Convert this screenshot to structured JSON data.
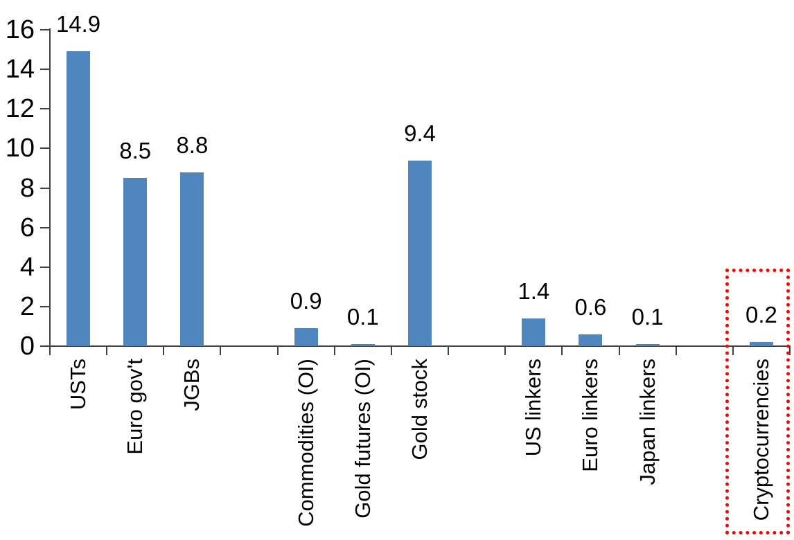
{
  "chart_data": {
    "type": "bar",
    "title": "",
    "xlabel": "",
    "ylabel": "",
    "categories": [
      "USTs",
      "Euro gov't",
      "JGBs",
      "Commodities (OI)",
      "Gold futures (OI)",
      "Gold stock",
      "US linkers",
      "Euro linkers",
      "Japan linkers",
      "Cryptocurrencies"
    ],
    "values": [
      14.9,
      8.5,
      8.8,
      0.9,
      0.1,
      9.4,
      1.4,
      0.6,
      0.1,
      0.2
    ],
    "value_labels": [
      "14.9",
      "8.5",
      "8.8",
      "0.9",
      "0.1",
      "9.4",
      "1.4",
      "0.6",
      "0.1",
      "0.2"
    ],
    "slot_indices": [
      0,
      1,
      2,
      4,
      5,
      6,
      8,
      9,
      10,
      12
    ],
    "num_slots": 13,
    "ylim": [
      0,
      16
    ],
    "yticks": [
      0,
      2,
      4,
      6,
      8,
      10,
      12,
      14,
      16
    ],
    "grid": false,
    "legend": false,
    "bar_color": "#4E86BD",
    "axis_color": "#404040",
    "text_color": "#000000",
    "highlight": {
      "category": "Cryptocurrencies",
      "slot_index": 12,
      "shape": "dotted-rectangle",
      "color": "#FF0000"
    }
  }
}
